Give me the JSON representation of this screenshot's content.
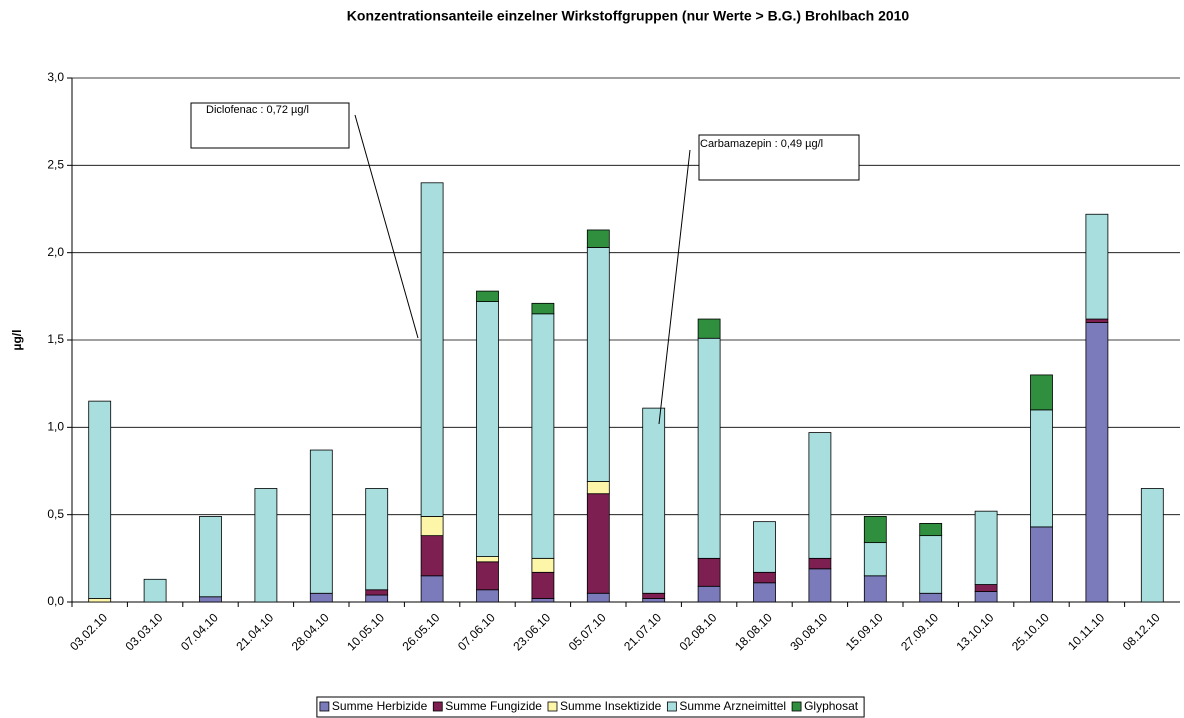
{
  "chart_data": {
    "type": "stacked_bar",
    "title": "Konzentrationsanteile einzelner Wirkstoffgruppen (nur Werte > B.G.) Brohlbach 2010",
    "y_label": "µg/l",
    "categories": [
      "03.02.10",
      "03.03.10",
      "07.04.10",
      "21.04.10",
      "28.04.10",
      "10.05.10",
      "26.05.10",
      "07.06.10",
      "23.06.10",
      "05.07.10",
      "21.07.10",
      "02.08.10",
      "18.08.10",
      "30.08.10",
      "15.09.10",
      "27.09.10",
      "13.10.10",
      "25.10.10",
      "10.11.10",
      "08.12.10"
    ],
    "series": [
      {
        "name": "Summe Herbizide",
        "color": "#7b7bbb",
        "values": [
          0,
          0,
          0.03,
          0,
          0.05,
          0.04,
          0.15,
          0.07,
          0.02,
          0.05,
          0.02,
          0.09,
          0.11,
          0.19,
          0.15,
          0.05,
          0.06,
          0.43,
          1.6,
          0
        ]
      },
      {
        "name": "Summe Fungizide",
        "color": "#7e1f52",
        "values": [
          0,
          0,
          0,
          0,
          0,
          0.03,
          0.23,
          0.16,
          0.15,
          0.57,
          0.03,
          0.16,
          0.06,
          0.06,
          0,
          0,
          0.04,
          0,
          0.02,
          0
        ]
      },
      {
        "name": "Summe Insektizide",
        "color": "#fdf6a8",
        "values": [
          0.02,
          0,
          0,
          0,
          0,
          0,
          0.11,
          0.03,
          0.08,
          0.07,
          0,
          0,
          0,
          0,
          0,
          0,
          0,
          0,
          0,
          0
        ]
      },
      {
        "name": "Summe Arzneimittel",
        "color": "#a8dede",
        "values": [
          1.13,
          0.13,
          0.46,
          0.65,
          0.82,
          0.58,
          1.91,
          1.46,
          1.4,
          1.34,
          1.06,
          1.26,
          0.29,
          0.72,
          0.19,
          0.33,
          0.42,
          0.67,
          0.6,
          0.65
        ]
      },
      {
        "name": "Glyphosat",
        "color": "#2f8f3f",
        "values": [
          0,
          0,
          0,
          0,
          0,
          0,
          0,
          0.06,
          0.06,
          0.1,
          0,
          0.11,
          0,
          0,
          0.15,
          0.07,
          0,
          0.2,
          0,
          0
        ]
      }
    ],
    "ylim": [
      0,
      3
    ],
    "yticks": [
      {
        "value": 0,
        "label": "0,0"
      },
      {
        "value": 0.5,
        "label": "0,5"
      },
      {
        "value": 1,
        "label": "1,0"
      },
      {
        "value": 1.5,
        "label": "1,5"
      },
      {
        "value": 2,
        "label": "2,0"
      },
      {
        "value": 2.5,
        "label": "2,5"
      },
      {
        "value": 3,
        "label": "3,0"
      }
    ],
    "grid": true,
    "legend": "bottom",
    "annotations": [
      "Diclofenac : 0,72 µg/l",
      "Carbamazepin : 0,49 µg/l"
    ]
  }
}
